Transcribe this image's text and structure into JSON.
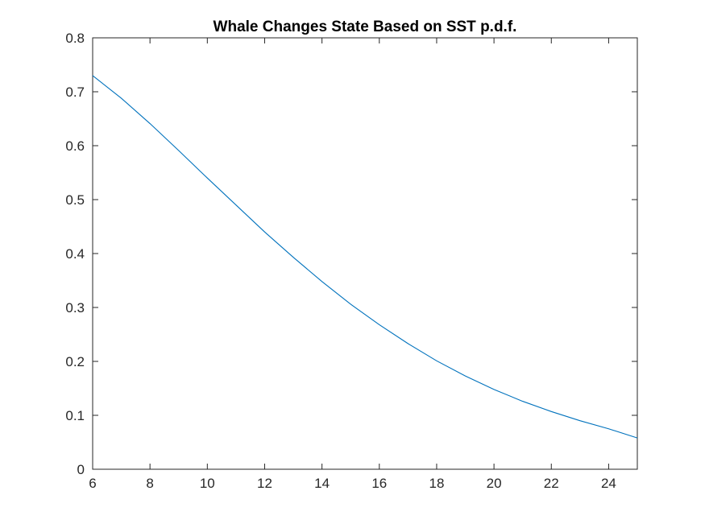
{
  "chart_data": {
    "type": "line",
    "title": "Whale Changes State Based on SST p.d.f.",
    "xlabel": "",
    "ylabel": "",
    "xlim": [
      6,
      25
    ],
    "ylim": [
      0,
      0.8
    ],
    "xticks": [
      6,
      8,
      10,
      12,
      14,
      16,
      18,
      20,
      22,
      24
    ],
    "yticks": [
      0,
      0.1,
      0.2,
      0.3,
      0.4,
      0.5,
      0.6,
      0.7,
      0.8
    ],
    "grid": false,
    "box": true,
    "line_color": "#0072BD",
    "axis_color": "#262626",
    "series": [
      {
        "x": [
          6,
          7,
          8,
          9,
          10,
          11,
          12,
          13,
          14,
          15,
          16,
          17,
          18,
          19,
          20,
          21,
          22,
          23,
          24,
          25
        ],
        "y": [
          0.73,
          0.688,
          0.641,
          0.591,
          0.54,
          0.49,
          0.44,
          0.393,
          0.348,
          0.306,
          0.268,
          0.233,
          0.201,
          0.173,
          0.148,
          0.126,
          0.107,
          0.09,
          0.075,
          0.058
        ]
      }
    ]
  }
}
